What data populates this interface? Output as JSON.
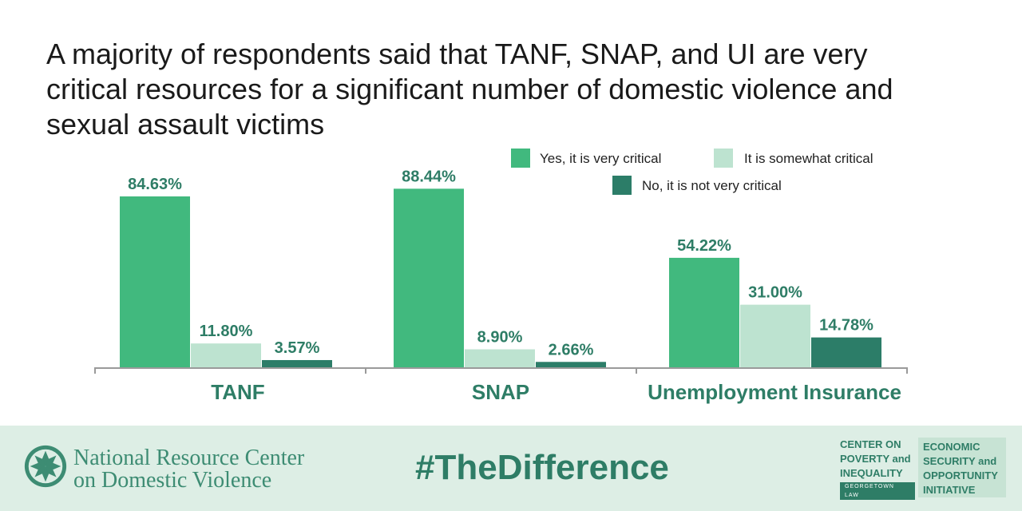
{
  "title_lines": [
    "A majority of respondents said that TANF, SNAP, and UI are very",
    "critical resources for a significant number of domestic violence and",
    "sexual assault victims"
  ],
  "chart_data": {
    "type": "bar",
    "title": "A majority of respondents said that TANF, SNAP, and UI are very critical resources for a significant number of domestic violence and sexual assault victims",
    "categories": [
      "TANF",
      "SNAP",
      "Unemployment Insurance"
    ],
    "series": [
      {
        "name": "Yes, it is very critical",
        "values": [
          84.63,
          88.44,
          54.22
        ],
        "labels": [
          "84.63%",
          "88.44%",
          "54.22%"
        ],
        "color": "#41b97e"
      },
      {
        "name": "It is somewhat critical",
        "values": [
          11.8,
          8.9,
          31.0
        ],
        "labels": [
          "11.80%",
          "8.90%",
          "31.00%"
        ],
        "color": "#bde3d0"
      },
      {
        "name": "No, it is not very critical",
        "values": [
          3.57,
          2.66,
          14.78
        ],
        "labels": [
          "3.57%",
          "2.66%",
          "14.78%"
        ],
        "color": "#2c7d68"
      }
    ],
    "ylim": [
      0,
      100
    ],
    "grid": false,
    "legend_position": "top-right",
    "label_color": "#2e7d66"
  },
  "footer": {
    "org_name_line1": "National Resource Center",
    "org_name_line2": "on Domestic Violence",
    "hashtag": "#TheDifference",
    "cpi_lines": [
      "CENTER ON",
      "POVERTY and",
      "INEQUALITY"
    ],
    "cpi_sub": "GEORGETOWN LAW",
    "esoi_lines": [
      "ECONOMIC",
      "SECURITY and",
      "OPPORTUNITY",
      "INITIATIVE"
    ],
    "background": "#ddeee5",
    "accent": "#2e7d66"
  }
}
